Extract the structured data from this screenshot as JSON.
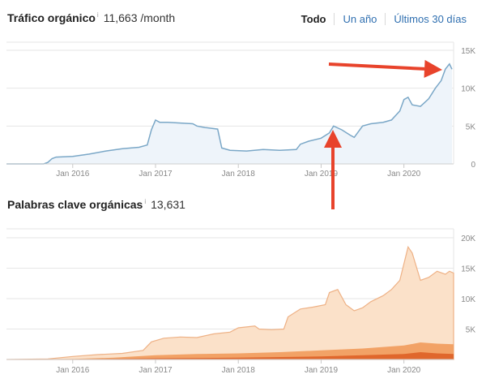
{
  "header_traffic": {
    "title": "Tráfico orgánico",
    "info_icon": "info-icon",
    "info_glyph": "i",
    "value": "11,663 /month"
  },
  "tabs": [
    {
      "label": "Todo",
      "active": true
    },
    {
      "label": "Un año",
      "active": false
    },
    {
      "label": "Últimos 30 días",
      "active": false
    }
  ],
  "header_keywords": {
    "title": "Palabras clave orgánicas",
    "info_icon": "info-icon",
    "info_glyph": "i",
    "value": "13,631"
  },
  "colors": {
    "traffic_line": "#7aa7c7",
    "traffic_fill": "#eef4fa",
    "grid": "#e6e6e6",
    "arrow": "#e8432b",
    "kw_band1": "#fbe1c9",
    "kw_band1_line": "#eeb185",
    "kw_band2": "#f2a266",
    "kw_band3": "#e0672c",
    "axis_text": "#888888"
  },
  "chart_data": [
    {
      "type": "line",
      "title": "Tráfico orgánico",
      "x_ticks": [
        "Jan 2016",
        "Jan 2017",
        "Jan 2018",
        "Jan 2019",
        "Jan 2020"
      ],
      "y_ticks": [
        "15K",
        "10K",
        "5K",
        "0"
      ],
      "ylim": [
        0,
        15000
      ],
      "xlim": [
        2015.2,
        2020.6
      ],
      "grid": true,
      "series": [
        {
          "values": [
            [
              2015.2,
              0
            ],
            [
              2015.65,
              0
            ],
            [
              2015.7,
              200
            ],
            [
              2015.75,
              700
            ],
            [
              2015.8,
              900
            ],
            [
              2016.0,
              1000
            ],
            [
              2016.2,
              1300
            ],
            [
              2016.4,
              1700
            ],
            [
              2016.6,
              2000
            ],
            [
              2016.8,
              2200
            ],
            [
              2016.9,
              2500
            ],
            [
              2016.95,
              4500
            ],
            [
              2017.0,
              5800
            ],
            [
              2017.05,
              5500
            ],
            [
              2017.15,
              5500
            ],
            [
              2017.3,
              5400
            ],
            [
              2017.45,
              5300
            ],
            [
              2017.5,
              5000
            ],
            [
              2017.6,
              4800
            ],
            [
              2017.75,
              4600
            ],
            [
              2017.8,
              2100
            ],
            [
              2017.9,
              1800
            ],
            [
              2018.1,
              1700
            ],
            [
              2018.3,
              1900
            ],
            [
              2018.5,
              1800
            ],
            [
              2018.7,
              1900
            ],
            [
              2018.75,
              2600
            ],
            [
              2018.85,
              3000
            ],
            [
              2019.0,
              3400
            ],
            [
              2019.1,
              4100
            ],
            [
              2019.15,
              5000
            ],
            [
              2019.25,
              4500
            ],
            [
              2019.35,
              3800
            ],
            [
              2019.4,
              3500
            ],
            [
              2019.5,
              5000
            ],
            [
              2019.6,
              5300
            ],
            [
              2019.75,
              5500
            ],
            [
              2019.85,
              5800
            ],
            [
              2019.95,
              7000
            ],
            [
              2020.0,
              8500
            ],
            [
              2020.05,
              8800
            ],
            [
              2020.1,
              7800
            ],
            [
              2020.2,
              7600
            ],
            [
              2020.3,
              8600
            ],
            [
              2020.38,
              10000
            ],
            [
              2020.45,
              11000
            ],
            [
              2020.5,
              12500
            ],
            [
              2020.55,
              13200
            ],
            [
              2020.58,
              12500
            ]
          ]
        }
      ]
    },
    {
      "type": "area",
      "title": "Palabras clave orgánicas",
      "x_ticks": [
        "Jan 2016",
        "Jan 2017",
        "Jan 2018",
        "Jan 2019",
        "Jan 2020"
      ],
      "y_ticks": [
        "20K",
        "15K",
        "10K",
        "5K"
      ],
      "ylim": [
        0,
        20000
      ],
      "xlim": [
        2015.2,
        2020.6
      ],
      "grid": true,
      "series": [
        {
          "values": [
            [
              2015.2,
              0
            ],
            [
              2015.7,
              100
            ],
            [
              2016.0,
              500
            ],
            [
              2016.3,
              800
            ],
            [
              2016.6,
              1000
            ],
            [
              2016.85,
              1500
            ],
            [
              2016.95,
              2900
            ],
            [
              2017.1,
              3500
            ],
            [
              2017.3,
              3700
            ],
            [
              2017.5,
              3600
            ],
            [
              2017.7,
              4200
            ],
            [
              2017.9,
              4500
            ],
            [
              2018.0,
              5200
            ],
            [
              2018.2,
              5500
            ],
            [
              2018.25,
              5000
            ],
            [
              2018.4,
              4900
            ],
            [
              2018.55,
              5000
            ],
            [
              2018.6,
              7000
            ],
            [
              2018.75,
              8300
            ],
            [
              2018.9,
              8600
            ],
            [
              2019.05,
              9000
            ],
            [
              2019.1,
              11000
            ],
            [
              2019.2,
              11500
            ],
            [
              2019.3,
              9000
            ],
            [
              2019.4,
              8000
            ],
            [
              2019.5,
              8500
            ],
            [
              2019.6,
              9500
            ],
            [
              2019.75,
              10500
            ],
            [
              2019.85,
              11500
            ],
            [
              2019.95,
              13000
            ],
            [
              2020.05,
              18500
            ],
            [
              2020.1,
              17500
            ],
            [
              2020.2,
              13000
            ],
            [
              2020.3,
              13500
            ],
            [
              2020.4,
              14500
            ],
            [
              2020.5,
              14000
            ],
            [
              2020.55,
              14500
            ],
            [
              2020.6,
              14200
            ]
          ]
        },
        {
          "values": [
            [
              2015.2,
              0
            ],
            [
              2016.0,
              100
            ],
            [
              2016.5,
              300
            ],
            [
              2017.0,
              700
            ],
            [
              2017.5,
              900
            ],
            [
              2018.0,
              1000
            ],
            [
              2018.5,
              1200
            ],
            [
              2019.0,
              1500
            ],
            [
              2019.5,
              1800
            ],
            [
              2020.0,
              2300
            ],
            [
              2020.2,
              2800
            ],
            [
              2020.4,
              2600
            ],
            [
              2020.6,
              2500
            ]
          ]
        },
        {
          "values": [
            [
              2015.2,
              0
            ],
            [
              2016.0,
              50
            ],
            [
              2017.0,
              200
            ],
            [
              2018.0,
              300
            ],
            [
              2019.0,
              500
            ],
            [
              2019.5,
              700
            ],
            [
              2020.0,
              900
            ],
            [
              2020.2,
              1200
            ],
            [
              2020.4,
              1000
            ],
            [
              2020.6,
              900
            ]
          ]
        }
      ]
    }
  ],
  "annotations": [
    {
      "label": "arrow-right-to-peak"
    },
    {
      "label": "arrow-up-to-2019"
    }
  ]
}
